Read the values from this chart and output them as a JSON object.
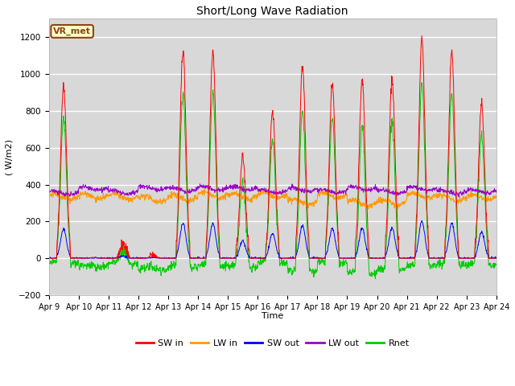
{
  "title": "Short/Long Wave Radiation",
  "xlabel": "Time",
  "ylabel": "( W/m2)",
  "ylim": [
    -200,
    1300
  ],
  "yticks": [
    -200,
    0,
    200,
    400,
    600,
    800,
    1000,
    1200
  ],
  "x_labels": [
    "Apr 9",
    "Apr 10",
    "Apr 11",
    "Apr 12",
    "Apr 13",
    "Apr 14",
    "Apr 15",
    "Apr 16",
    "Apr 17",
    "Apr 18",
    "Apr 19",
    "Apr 20",
    "Apr 21",
    "Apr 22",
    "Apr 23",
    "Apr 24"
  ],
  "colors": {
    "SW_in": "#ff0000",
    "LW_in": "#ff9900",
    "SW_out": "#0000ff",
    "LW_out": "#9900cc",
    "Rnet": "#00cc00"
  },
  "legend_labels": [
    "SW in",
    "LW in",
    "SW out",
    "LW out",
    "Rnet"
  ],
  "station_label": "VR_met",
  "background_color": "#ffffff",
  "plot_bg_color": "#d8d8d8",
  "grid_color": "#ffffff",
  "n_days": 15,
  "points_per_day": 96,
  "figsize": [
    6.4,
    4.8
  ],
  "dpi": 100,
  "title_fontsize": 10,
  "axis_fontsize": 8,
  "tick_fontsize": 7,
  "legend_fontsize": 8
}
